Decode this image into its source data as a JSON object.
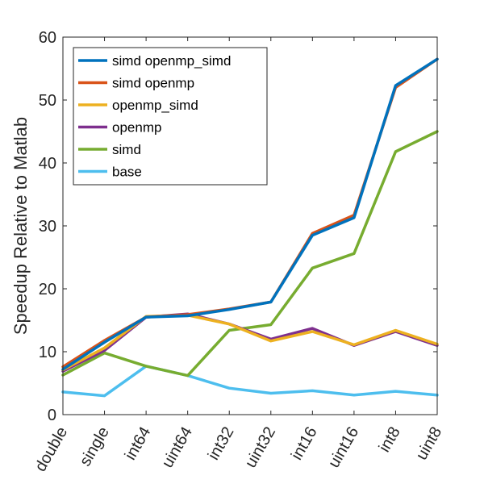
{
  "chart_data": {
    "type": "line",
    "title": "",
    "xlabel": "",
    "ylabel": "Speedup Relative to Matlab",
    "ylim": [
      0,
      60
    ],
    "yticks": [
      0,
      10,
      20,
      30,
      40,
      50,
      60
    ],
    "categories": [
      "double",
      "single",
      "int64",
      "uint64",
      "int32",
      "uint32",
      "int16",
      "uint16",
      "int8",
      "uint8"
    ],
    "grid": false,
    "legend_position": "top-left",
    "series": [
      {
        "name": "simd openmp_simd",
        "color": "#0072BD",
        "values": [
          7.2,
          11.5,
          15.5,
          15.7,
          16.7,
          17.9,
          28.5,
          31.3,
          52.3,
          56.5
        ]
      },
      {
        "name": "simd openmp",
        "color": "#D95319",
        "values": [
          7.6,
          11.8,
          15.5,
          15.9,
          16.8,
          17.9,
          28.8,
          31.7,
          52.0,
          56.5
        ]
      },
      {
        "name": "openmp_simd",
        "color": "#EDB120",
        "values": [
          7.1,
          10.6,
          15.6,
          15.8,
          14.4,
          11.7,
          13.2,
          11.1,
          13.4,
          11.2
        ]
      },
      {
        "name": "openmp",
        "color": "#7E2F8E",
        "values": [
          6.9,
          10.2,
          15.5,
          16.0,
          14.4,
          12.0,
          13.7,
          11.0,
          13.2,
          11.0
        ]
      },
      {
        "name": "simd",
        "color": "#77AC30",
        "values": [
          6.3,
          9.8,
          7.7,
          6.2,
          13.4,
          14.3,
          23.3,
          25.6,
          41.8,
          45.0
        ]
      },
      {
        "name": "base",
        "color": "#4DBEEE",
        "values": [
          3.6,
          3.0,
          7.7,
          6.2,
          4.2,
          3.4,
          3.8,
          3.1,
          3.7,
          3.1
        ]
      }
    ]
  }
}
